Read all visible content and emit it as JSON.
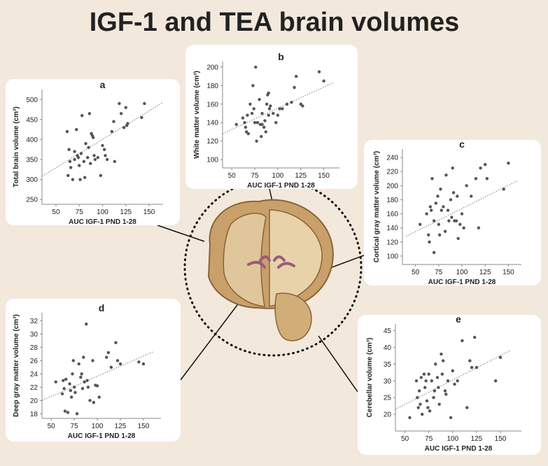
{
  "title": "IGF-1 and TEA brain volumes",
  "chart_data": [
    {
      "type": "scatter",
      "label": "a",
      "xlabel": "AUC IGF-1 PND 1-28",
      "ylabel": "Total brain volume (cm³)",
      "color": "#555555",
      "xlim": [
        35,
        165
      ],
      "ylim": [
        238,
        525
      ],
      "xticks": [
        50,
        75,
        100,
        125,
        150
      ],
      "yticks": [
        250,
        300,
        350,
        400,
        450,
        500
      ],
      "x": [
        62,
        63,
        64,
        65,
        66,
        68,
        70,
        70,
        72,
        73,
        74,
        75,
        76,
        77,
        78,
        80,
        81,
        82,
        84,
        85,
        86,
        87,
        88,
        89,
        90,
        91,
        92,
        95,
        98,
        100,
        102,
        103,
        105,
        110,
        112,
        113,
        118,
        120,
        123,
        125,
        126,
        127,
        142,
        145
      ],
      "y": [
        420,
        310,
        375,
        345,
        330,
        300,
        350,
        370,
        425,
        360,
        355,
        335,
        300,
        365,
        460,
        345,
        305,
        390,
        355,
        380,
        465,
        340,
        415,
        410,
        405,
        360,
        350,
        355,
        310,
        385,
        375,
        360,
        350,
        420,
        445,
        345,
        490,
        465,
        430,
        480,
        435,
        440,
        455,
        490
      ],
      "trendline": {
        "x": [
          35,
          165
        ],
        "y": [
          308,
          493
        ]
      }
    },
    {
      "type": "scatter",
      "label": "b",
      "xlabel": "AUC IGF-1 PND 1-28",
      "ylabel": "White matter volume (cm³)",
      "color": "#555555",
      "xlim": [
        40,
        167
      ],
      "ylim": [
        91,
        206
      ],
      "xticks": [
        50,
        75,
        100,
        125,
        150
      ],
      "yticks": [
        100,
        120,
        140,
        160,
        180,
        200
      ],
      "x": [
        55,
        62,
        64,
        65,
        66,
        67,
        68,
        70,
        72,
        73,
        74,
        75,
        76,
        77,
        78,
        80,
        81,
        82,
        83,
        85,
        86,
        87,
        88,
        89,
        90,
        91,
        92,
        95,
        98,
        100,
        102,
        105,
        110,
        115,
        118,
        120,
        125,
        127,
        145,
        150,
        90,
        83
      ],
      "y": [
        138,
        145,
        140,
        135,
        130,
        148,
        128,
        160,
        150,
        180,
        155,
        140,
        200,
        120,
        140,
        165,
        138,
        125,
        150,
        135,
        142,
        130,
        160,
        170,
        172,
        155,
        158,
        150,
        140,
        148,
        155,
        155,
        160,
        162,
        178,
        190,
        160,
        158,
        195,
        185,
        148,
        138
      ],
      "trendline": {
        "x": [
          40,
          160
        ],
        "y": [
          128,
          183
        ]
      }
    },
    {
      "type": "scatter",
      "label": "c",
      "xlabel": "AUC IGF-1 PND 1-28",
      "ylabel": "Cortical gray matter volume (cm³)",
      "color": "#555555",
      "xlim": [
        36,
        164
      ],
      "ylim": [
        88,
        252
      ],
      "xticks": [
        50,
        75,
        100,
        125,
        150
      ],
      "yticks": [
        100,
        120,
        140,
        160,
        180,
        200,
        220,
        240
      ],
      "x": [
        55,
        62,
        64,
        65,
        66,
        67,
        68,
        70,
        70,
        72,
        74,
        75,
        76,
        77,
        78,
        80,
        82,
        83,
        85,
        86,
        88,
        89,
        90,
        91,
        92,
        95,
        96,
        98,
        100,
        102,
        105,
        110,
        115,
        118,
        120,
        125,
        127,
        145,
        150,
        94
      ],
      "y": [
        145,
        160,
        130,
        120,
        170,
        165,
        210,
        105,
        150,
        175,
        185,
        145,
        130,
        195,
        165,
        170,
        135,
        215,
        165,
        150,
        180,
        155,
        225,
        190,
        150,
        185,
        125,
        145,
        160,
        140,
        200,
        185,
        210,
        140,
        225,
        230,
        210,
        195,
        232,
        150
      ],
      "trendline": {
        "x": [
          40,
          160
        ],
        "y": [
          128,
          207
        ]
      }
    },
    {
      "type": "scatter",
      "label": "d",
      "xlabel": "AUC IGF-1 PND 1-28",
      "ylabel": "Deep gray matter volume (cm³)",
      "color": "#555555",
      "xlim": [
        40,
        169
      ],
      "ylim": [
        17.3,
        33.2
      ],
      "xticks": [
        50,
        75,
        100,
        125,
        150
      ],
      "yticks": [
        18,
        20,
        22,
        24,
        26,
        28,
        30,
        32
      ],
      "x": [
        55,
        62,
        63,
        64,
        65,
        66,
        68,
        70,
        71,
        72,
        73,
        74,
        75,
        76,
        78,
        80,
        82,
        83,
        85,
        86,
        88,
        89,
        90,
        92,
        95,
        96,
        98,
        100,
        102,
        110,
        112,
        115,
        120,
        122,
        125,
        145,
        150,
        84
      ],
      "y": [
        22.8,
        21.0,
        23.0,
        21.8,
        18.4,
        23.2,
        18.2,
        22.5,
        21.5,
        20.5,
        24.0,
        26.0,
        22.0,
        21.2,
        18.0,
        25.5,
        23.5,
        24.0,
        26.5,
        22.8,
        31.5,
        23.0,
        22.0,
        20.0,
        26.0,
        19.7,
        22.3,
        22.2,
        20.5,
        26.5,
        27.2,
        25.0,
        28.7,
        26.0,
        25.5,
        25.8,
        25.5,
        21.8
      ],
      "trendline": {
        "x": [
          40,
          160
        ],
        "y": [
          20.0,
          27.3
        ]
      }
    },
    {
      "type": "scatter",
      "label": "e",
      "xlabel": "AUC IGF-1 PND 1-28",
      "ylabel": "Cerebellar volume (cm³)",
      "color": "#555555",
      "xlim": [
        40,
        172
      ],
      "ylim": [
        15,
        47
      ],
      "xticks": [
        50,
        75,
        100,
        125,
        150
      ],
      "yticks": [
        20,
        25,
        30,
        35,
        40,
        45
      ],
      "x": [
        55,
        62,
        63,
        64,
        65,
        66,
        67,
        68,
        70,
        71,
        72,
        73,
        74,
        75,
        76,
        78,
        80,
        81,
        82,
        84,
        85,
        86,
        88,
        89,
        90,
        92,
        95,
        98,
        100,
        102,
        105,
        110,
        115,
        118,
        120,
        123,
        125,
        145,
        150,
        93
      ],
      "y": [
        19,
        30,
        25,
        22,
        27,
        23,
        31,
        20,
        32,
        28,
        30,
        24,
        22,
        32,
        21,
        30,
        25,
        27,
        35,
        31,
        28,
        23,
        38,
        32,
        36,
        27,
        30,
        19,
        33,
        29,
        30,
        42,
        22,
        36,
        34,
        43,
        34,
        30,
        37,
        26
      ],
      "trendline": {
        "x": [
          40,
          160
        ],
        "y": [
          21.5,
          39
        ]
      }
    }
  ]
}
